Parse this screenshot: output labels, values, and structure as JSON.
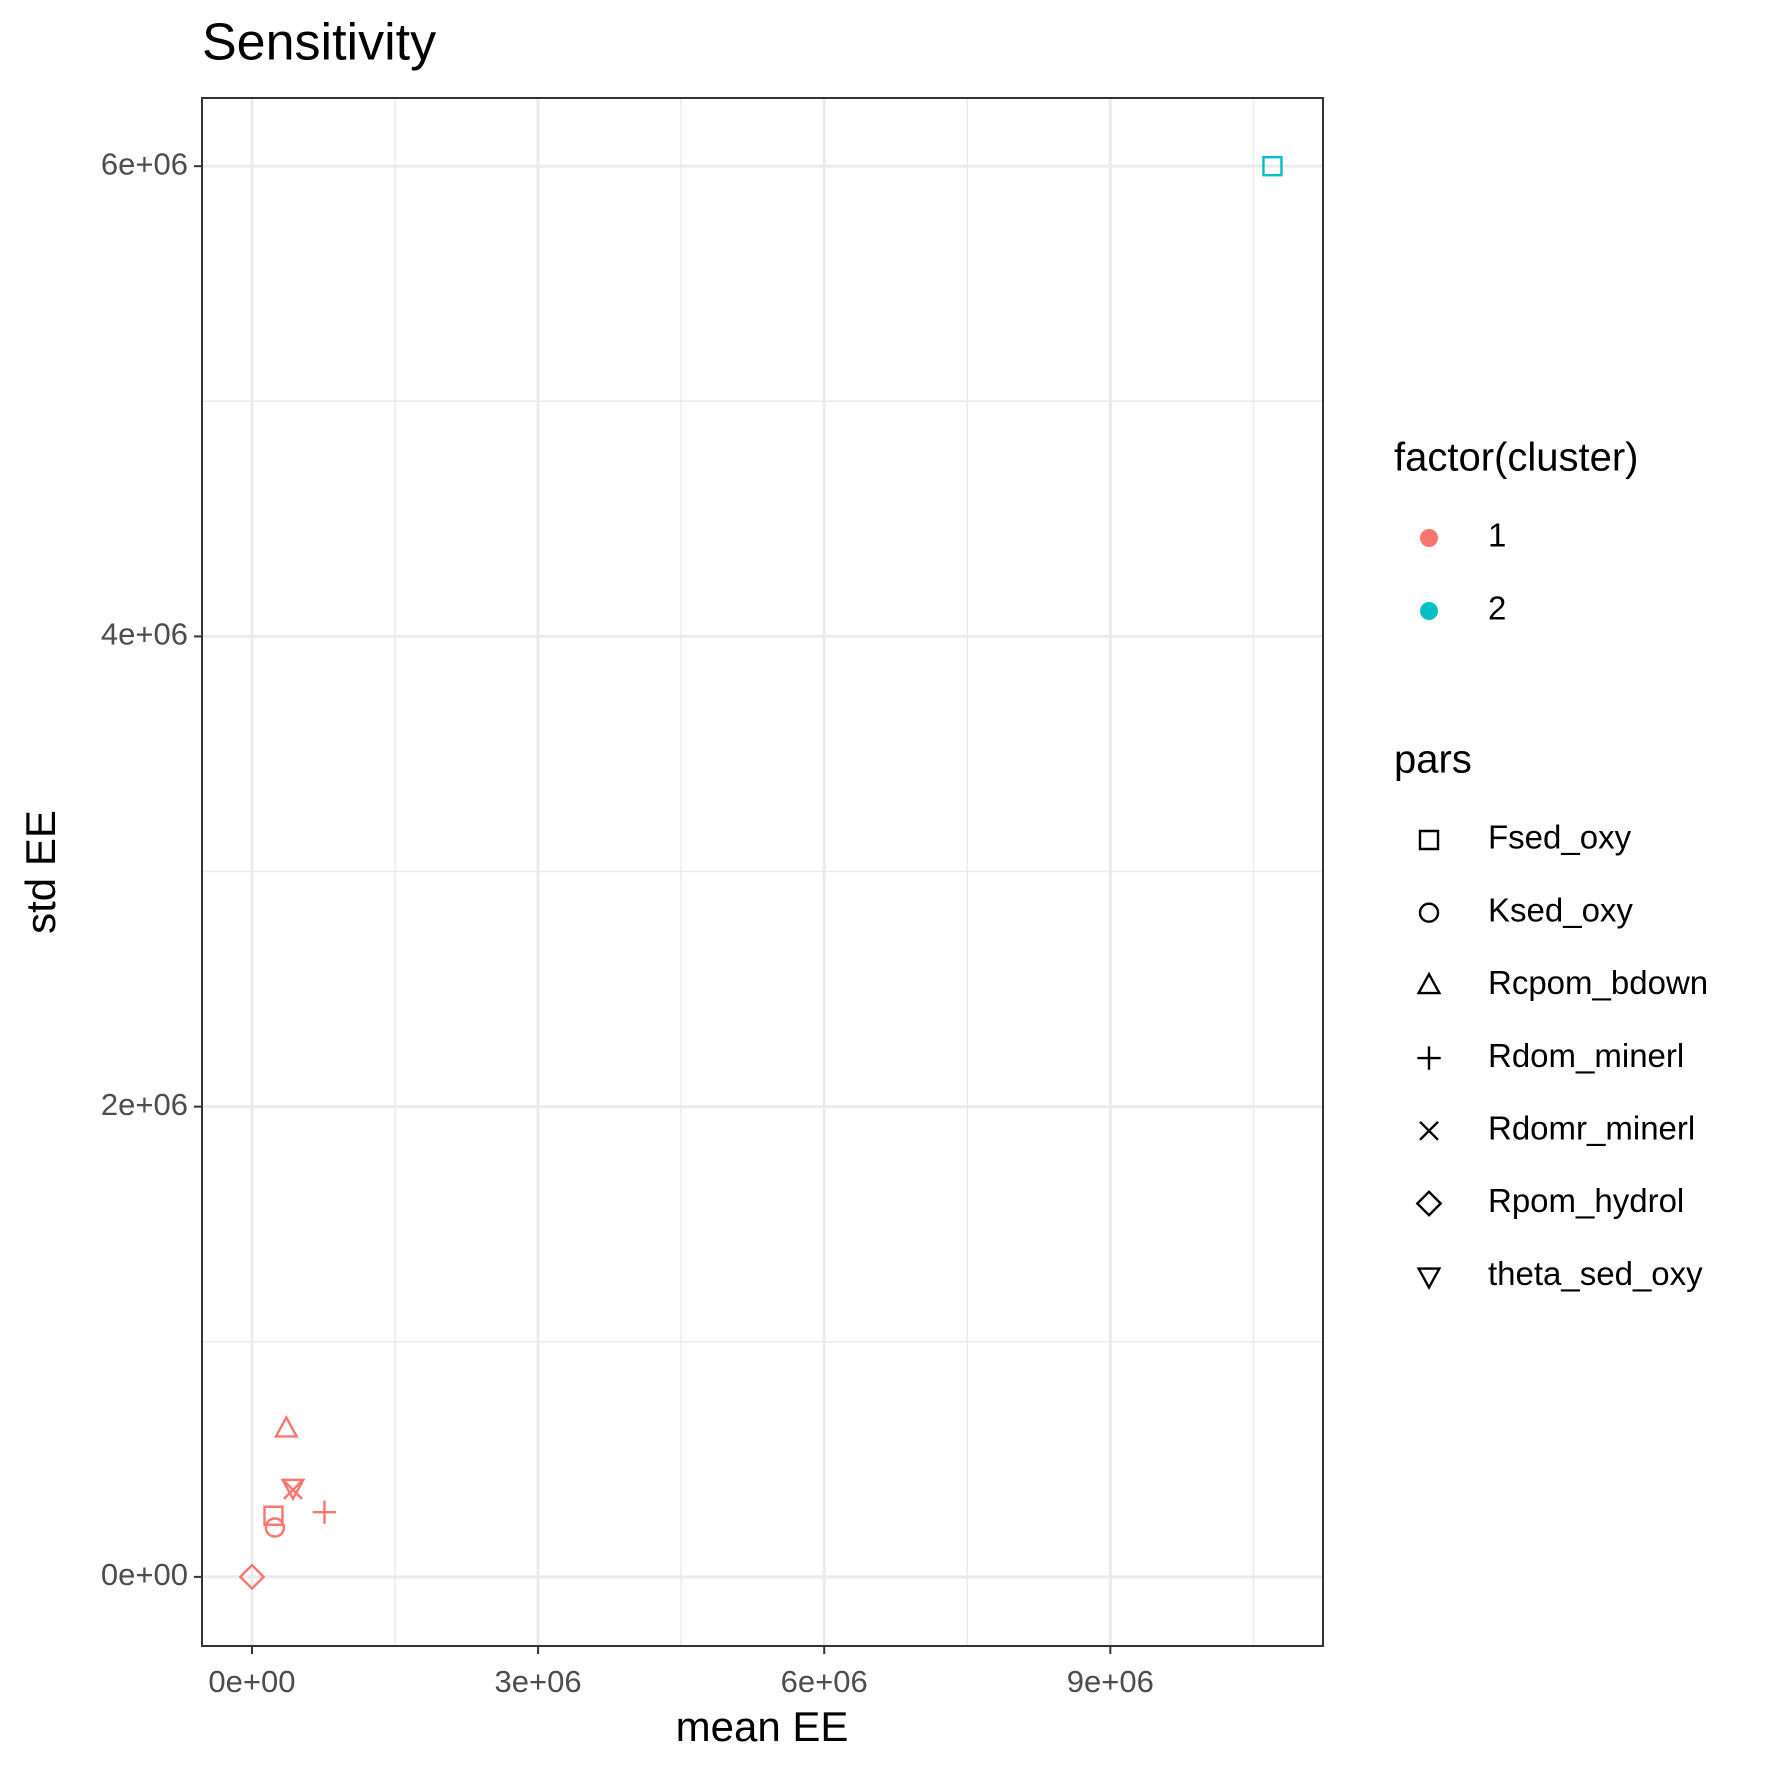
{
  "chart_data": {
    "type": "scatter",
    "title": "Sensitivity",
    "xlabel": "mean EE",
    "ylabel": "std EE",
    "xlim": [
      -524000,
      11230000
    ],
    "ylim": [
      -294000,
      6290000
    ],
    "xticks": [
      {
        "value": 0,
        "label": "0e+00"
      },
      {
        "value": 3000000,
        "label": "3e+06"
      },
      {
        "value": 6000000,
        "label": "6e+06"
      },
      {
        "value": 9000000,
        "label": "9e+06"
      }
    ],
    "yticks": [
      {
        "value": 0,
        "label": "0e+00"
      },
      {
        "value": 2000000,
        "label": "2e+06"
      },
      {
        "value": 4000000,
        "label": "4e+06"
      },
      {
        "value": 6000000,
        "label": "6e+06"
      }
    ],
    "grid": true,
    "color_legend": {
      "title": "factor(cluster)"
    },
    "shape_legend": {
      "title": "pars",
      "entries": [
        "Fsed_oxy",
        "Ksed_oxy",
        "Rcpom_bdown",
        "Rdom_minerl",
        "Rdomr_minerl",
        "Rpom_hydrol",
        "theta_sed_oxy"
      ]
    },
    "series": [
      {
        "name": "1",
        "color": "#F8766D",
        "x": [
          226000,
          240000,
          360000,
          760000,
          430000,
          0,
          430000
        ],
        "y": [
          260000,
          210000,
          630000,
          275000,
          370000,
          0,
          380000
        ],
        "pars": [
          "Fsed_oxy",
          "Ksed_oxy",
          "Rcpom_bdown",
          "Rdom_minerl",
          "Rdomr_minerl",
          "Rpom_hydrol",
          "theta_sed_oxy"
        ]
      },
      {
        "name": "2",
        "color": "#00BFC4",
        "x": [
          10700000
        ],
        "y": [
          6000000
        ],
        "pars": [
          "Fsed_oxy"
        ]
      }
    ]
  }
}
